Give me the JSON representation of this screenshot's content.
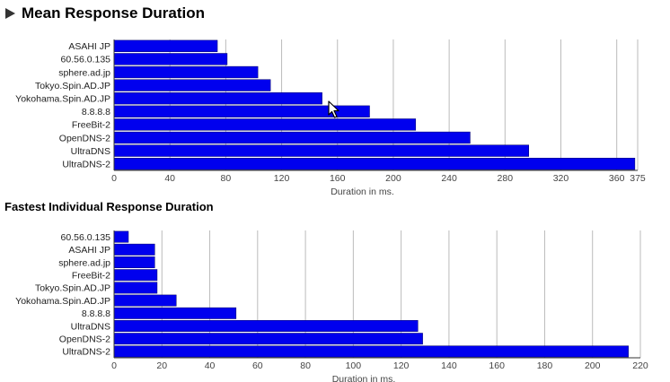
{
  "heading": "Mean Response Duration",
  "heading_icon": "triangle-right-icon",
  "chart_data": [
    {
      "type": "bar",
      "orientation": "horizontal",
      "title": "",
      "categories": [
        "ASAHI JP",
        "60.56.0.135",
        "sphere.ad.jp",
        "Tokyo.Spin.AD.JP",
        "Yokohama.Spin.AD.JP",
        "8.8.8.8",
        "FreeBit-2",
        "OpenDNS-2",
        "UltraDNS",
        "UltraDNS-2"
      ],
      "values": [
        74,
        81,
        103,
        112,
        149,
        183,
        216,
        255,
        297,
        373
      ],
      "xlabel": "Duration in ms.",
      "ylabel": "",
      "xlim": [
        0,
        375
      ],
      "ticks": [
        "0",
        "40",
        "80",
        "120",
        "160",
        "200",
        "240",
        "280",
        "320",
        "360",
        "375"
      ],
      "tick_values": [
        0,
        40,
        80,
        120,
        160,
        200,
        240,
        280,
        320,
        360,
        375
      ],
      "grid": true,
      "bar_color": "#0000ee"
    },
    {
      "type": "bar",
      "orientation": "horizontal",
      "title": "Fastest Individual Response Duration",
      "categories": [
        "60.56.0.135",
        "ASAHI JP",
        "sphere.ad.jp",
        "FreeBit-2",
        "Tokyo.Spin.AD.JP",
        "Yokohama.Spin.AD.JP",
        "8.8.8.8",
        "UltraDNS",
        "OpenDNS-2",
        "UltraDNS-2"
      ],
      "values": [
        6,
        17,
        17,
        18,
        18,
        26,
        51,
        127,
        129,
        215
      ],
      "xlabel": "Duration in ms.",
      "ylabel": "",
      "xlim": [
        0,
        220
      ],
      "ticks": [
        "0",
        "20",
        "40",
        "60",
        "80",
        "100",
        "120",
        "140",
        "160",
        "180",
        "200",
        "220"
      ],
      "tick_values": [
        0,
        20,
        40,
        60,
        80,
        100,
        120,
        140,
        160,
        180,
        200,
        220
      ],
      "grid": true,
      "bar_color": "#0000ee"
    }
  ]
}
